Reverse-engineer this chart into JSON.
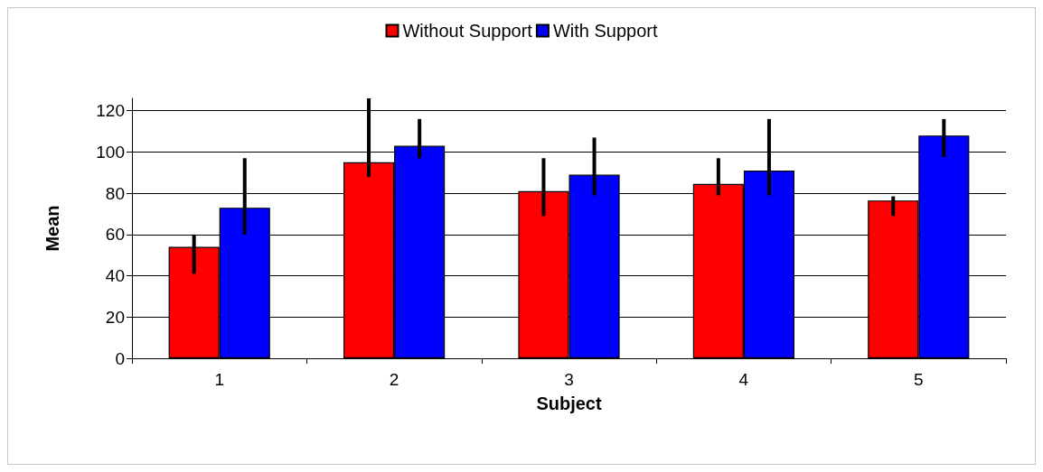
{
  "chart_data": {
    "type": "bar",
    "xlabel": "Subject",
    "ylabel": "Mean",
    "categories": [
      "1",
      "2",
      "3",
      "4",
      "5"
    ],
    "series": [
      {
        "name": "Without Support",
        "color": "#ff0000",
        "values": [
          54,
          95,
          81,
          84.5,
          76.5
        ],
        "errors": [
          [
            41,
            60
          ],
          [
            88,
            126
          ],
          [
            69,
            97
          ],
          [
            79,
            97
          ],
          [
            69,
            78.5
          ]
        ]
      },
      {
        "name": "With Support",
        "color": "#0000ff",
        "values": [
          73,
          103,
          89,
          91,
          108
        ],
        "errors": [
          [
            60,
            97
          ],
          [
            97,
            116
          ],
          [
            79,
            107
          ],
          [
            79,
            116
          ],
          [
            97.5,
            116
          ]
        ]
      }
    ],
    "ylim": [
      0,
      126
    ],
    "yticks": [
      0,
      20,
      40,
      60,
      80,
      100,
      120
    ],
    "grid": "y",
    "legend": "top"
  }
}
